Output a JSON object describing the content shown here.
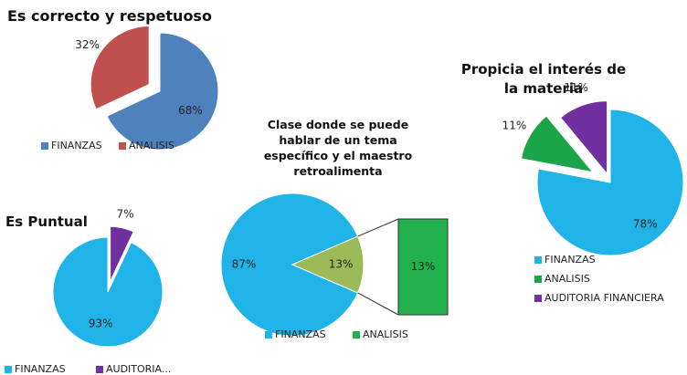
{
  "chart_data": [
    {
      "type": "pie",
      "title": "Es correcto y respetuoso",
      "categories": [
        "FINANZAS",
        "ANALISIS"
      ],
      "values": [
        68,
        32
      ],
      "value_labels": [
        "68%",
        "32%"
      ],
      "colors": [
        "#4f81bd",
        "#c0504d"
      ],
      "legend": "bottom"
    },
    {
      "type": "pie",
      "title": "Propicia el interés de la materia",
      "categories": [
        "FINANZAS",
        "ANALISIS",
        "AUDITORIA FINANCIERA"
      ],
      "values": [
        78,
        11,
        11
      ],
      "value_labels": [
        "78%",
        "11%",
        "11%"
      ],
      "colors": [
        "#1fb3e8",
        "#1aa548",
        "#7030a0"
      ],
      "legend": "bottom"
    },
    {
      "type": "bar_of_pie",
      "title": "Clase donde se puede hablar de un tema específico y el maestro retroalimenta",
      "categories": [
        "FINANZAS",
        "ANALISIS"
      ],
      "values": [
        87,
        13
      ],
      "value_labels": [
        "87%",
        "13%"
      ],
      "colors": [
        "#1fb3e8",
        "#9bbb59"
      ],
      "secondary_color": "#22b14c",
      "legend": "bottom"
    },
    {
      "type": "pie",
      "title": "Es Puntual",
      "categories": [
        "FINANZAS",
        "AUDITORIA..."
      ],
      "values": [
        93,
        7
      ],
      "value_labels": [
        "93%",
        "7%"
      ],
      "colors": [
        "#1fb3e8",
        "#7030a0"
      ],
      "legend": "bottom"
    }
  ]
}
